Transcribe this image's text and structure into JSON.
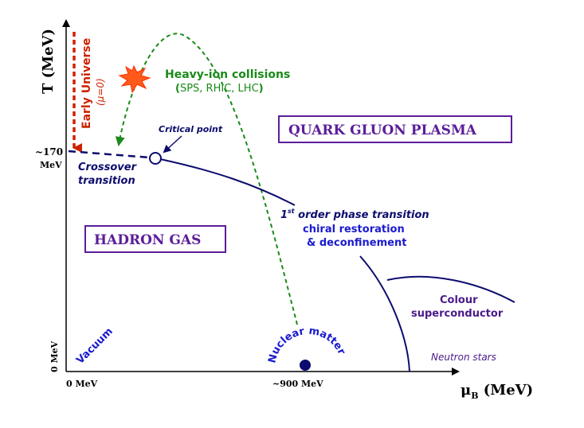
{
  "axes": {
    "y_label": "T (MeV)",
    "x_label_mu": "μ",
    "x_label_sub": "B",
    "x_label_unit": " (MeV)",
    "tick_170_a": "~170",
    "tick_170_b": "MeV",
    "tick_0_y": "0 MeV",
    "tick_0_x": "0 MeV",
    "tick_900_x": "~900 MeV"
  },
  "labels": {
    "early_universe": "Early Universe",
    "mu_zero": "(μ=0)",
    "heavy_ion_title": "Heavy-ion collisions",
    "heavy_ion_paren_open": "(",
    "heavy_ion_colliders": "SPS, RHIC, LHC",
    "heavy_ion_paren_close": ")",
    "critical_point": "Critical point",
    "crossover_1": "Crossover",
    "crossover_2": "transition",
    "qgp": "QUARK GLUON PLASMA",
    "hadron_gas": "HADRON GAS",
    "first_order_num": "1",
    "first_order_sup": "st",
    "first_order_rest": " order phase transition",
    "chiral_restoration": "chiral restoration",
    "deconfinement": "& deconfinement",
    "colour_1": "Colour",
    "colour_2": "superconductor",
    "neutron_stars": "Neutron stars",
    "vacuum": "Vacuum",
    "nuclear_matter": "Nuclear matter"
  },
  "colors": {
    "axis": "#000000",
    "phase_line": "#0c0c6e",
    "early_universe": "#cc2200",
    "heavy_ion": "#1a8a1a",
    "box_border": "#5b1e99",
    "box_text": "#5b1e99",
    "blue_text": "#1a1ad0",
    "purple_text": "#4a1a8a",
    "burst": "#ff5a1a"
  },
  "icons": [
    "collision-burst-icon",
    "critical-point-marker",
    "nuclear-matter-dot"
  ]
}
